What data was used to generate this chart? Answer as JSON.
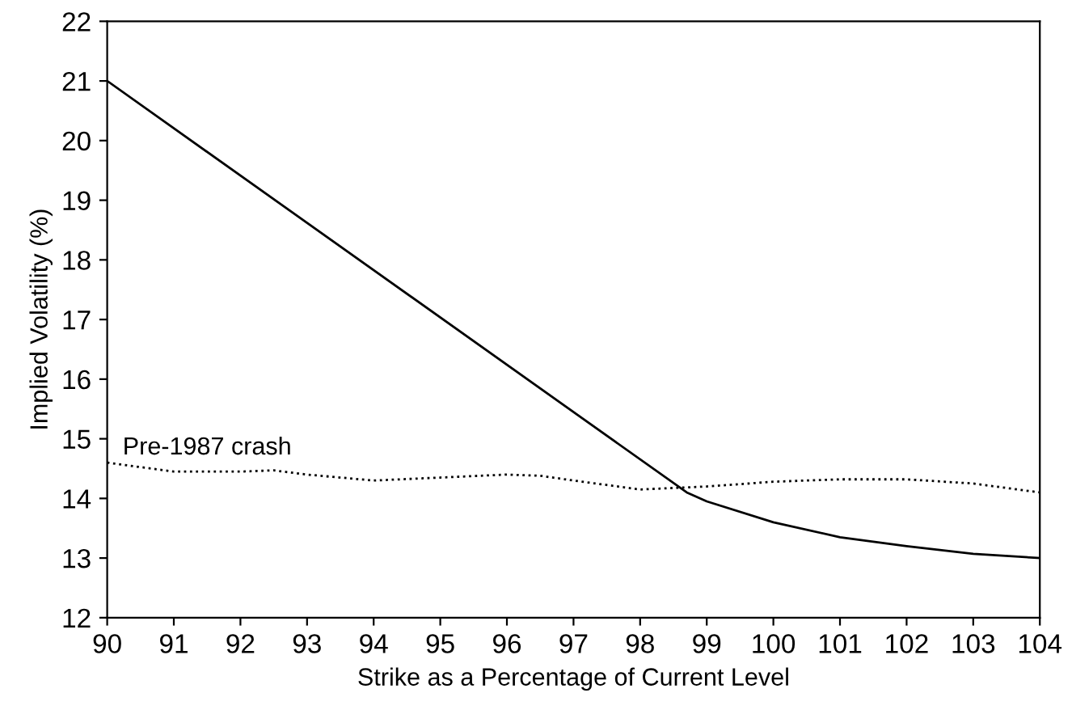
{
  "chart_data": {
    "type": "line",
    "xlabel": "Strike as a Percentage of Current Level",
    "ylabel": "Implied Volatility (%)",
    "xlim": [
      90,
      104
    ],
    "xticks": [
      90,
      91,
      92,
      93,
      94,
      95,
      96,
      97,
      98,
      99,
      100,
      101,
      102,
      103,
      104
    ],
    "ylim": [
      12,
      22
    ],
    "yticks": [
      12,
      13,
      14,
      15,
      16,
      17,
      18,
      19,
      20,
      21,
      22
    ],
    "grid": false,
    "legend": false,
    "series": [
      {
        "color": "#000000",
        "line_style": "solid",
        "x": [
          90,
          98.7,
          99,
          100,
          101,
          102,
          103,
          104
        ],
        "values": [
          21.0,
          14.1,
          13.95,
          13.6,
          13.35,
          13.2,
          13.07,
          13.0
        ]
      },
      {
        "name": "Pre-1987 crash",
        "color": "#000000",
        "line_style": "dotted",
        "x": [
          90,
          91,
          92,
          92.5,
          93,
          94,
          95,
          96,
          96.5,
          97,
          98,
          99,
          100,
          101,
          102,
          103,
          104
        ],
        "values": [
          14.6,
          14.45,
          14.45,
          14.47,
          14.4,
          14.3,
          14.35,
          14.4,
          14.38,
          14.3,
          14.15,
          14.2,
          14.28,
          14.32,
          14.32,
          14.25,
          14.1
        ]
      }
    ]
  }
}
